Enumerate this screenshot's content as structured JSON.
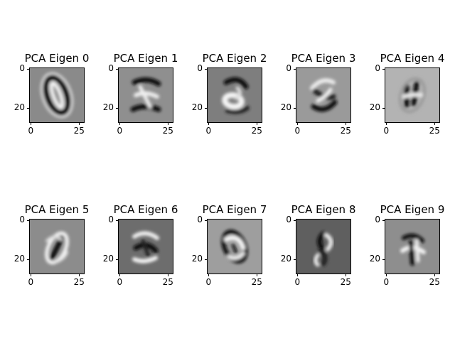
{
  "figure": {
    "type": "image_grid",
    "rows": 2,
    "cols": 5,
    "colormap": "gray"
  },
  "chart_data": [
    {
      "type": "heatmap",
      "title": "PCA Eigen 0",
      "xticks": [
        "0",
        "25"
      ],
      "yticks": [
        "0",
        "20"
      ],
      "xlim": [
        0,
        27
      ],
      "ylim": [
        0,
        27
      ],
      "background": "#8a8a8a"
    },
    {
      "type": "heatmap",
      "title": "PCA Eigen 1",
      "xticks": [
        "0",
        "25"
      ],
      "yticks": [
        "0",
        "20"
      ],
      "xlim": [
        0,
        27
      ],
      "ylim": [
        0,
        27
      ],
      "background": "#8f8f8f"
    },
    {
      "type": "heatmap",
      "title": "PCA Eigen 2",
      "xticks": [
        "0",
        "25"
      ],
      "yticks": [
        "0",
        "20"
      ],
      "xlim": [
        0,
        27
      ],
      "ylim": [
        0,
        27
      ],
      "background": "#7e7e7e"
    },
    {
      "type": "heatmap",
      "title": "PCA Eigen 3",
      "xticks": [
        "0",
        "25"
      ],
      "yticks": [
        "0",
        "20"
      ],
      "xlim": [
        0,
        27
      ],
      "ylim": [
        0,
        27
      ],
      "background": "#9a9a9a"
    },
    {
      "type": "heatmap",
      "title": "PCA Eigen 4",
      "xticks": [
        "0",
        "25"
      ],
      "yticks": [
        "0",
        "20"
      ],
      "xlim": [
        0,
        27
      ],
      "ylim": [
        0,
        27
      ],
      "background": "#b3b3b3"
    },
    {
      "type": "heatmap",
      "title": "PCA Eigen 5",
      "xticks": [
        "0",
        "25"
      ],
      "yticks": [
        "0",
        "20"
      ],
      "xlim": [
        0,
        27
      ],
      "ylim": [
        0,
        27
      ],
      "background": "#8c8c8c"
    },
    {
      "type": "heatmap",
      "title": "PCA Eigen 6",
      "xticks": [
        "0",
        "25"
      ],
      "yticks": [
        "0",
        "20"
      ],
      "xlim": [
        0,
        27
      ],
      "ylim": [
        0,
        27
      ],
      "background": "#6d6d6d"
    },
    {
      "type": "heatmap",
      "title": "PCA Eigen 7",
      "xticks": [
        "0",
        "25"
      ],
      "yticks": [
        "0",
        "20"
      ],
      "xlim": [
        0,
        27
      ],
      "ylim": [
        0,
        27
      ],
      "background": "#9e9e9e"
    },
    {
      "type": "heatmap",
      "title": "PCA Eigen 8",
      "xticks": [
        "0",
        "25"
      ],
      "yticks": [
        "0",
        "20"
      ],
      "xlim": [
        0,
        27
      ],
      "ylim": [
        0,
        27
      ],
      "background": "#5f5f5f"
    },
    {
      "type": "heatmap",
      "title": "PCA Eigen 9",
      "xticks": [
        "0",
        "25"
      ],
      "yticks": [
        "0",
        "20"
      ],
      "xlim": [
        0,
        27
      ],
      "ylim": [
        0,
        27
      ],
      "background": "#8e8e8e"
    }
  ]
}
